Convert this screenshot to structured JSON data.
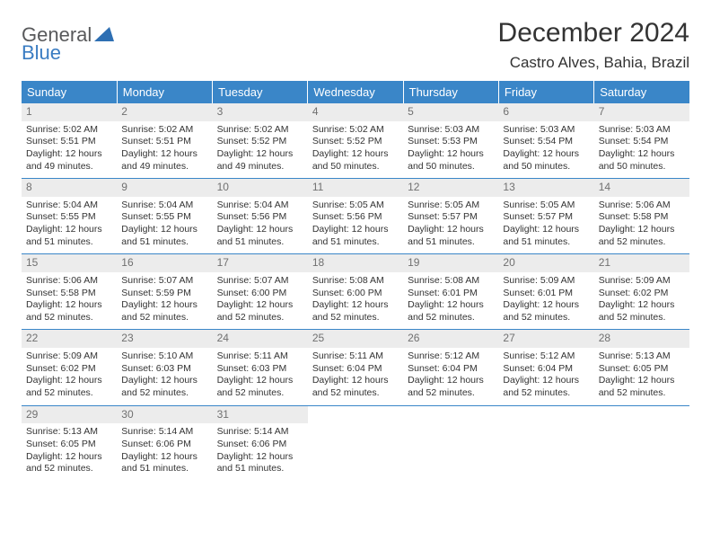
{
  "logo": {
    "line1": "General",
    "line2": "Blue",
    "tri_color": "#2e6fb3"
  },
  "title": "December 2024",
  "location": "Castro Alves, Bahia, Brazil",
  "colors": {
    "header_bg": "#3a86c8",
    "header_text": "#ffffff",
    "row_divider": "#3a86c8",
    "daynum_bg": "#ececec",
    "daynum_text": "#707070",
    "body_text": "#333333",
    "logo_gray": "#58595b",
    "logo_blue": "#3a7cc2"
  },
  "day_headers": [
    "Sunday",
    "Monday",
    "Tuesday",
    "Wednesday",
    "Thursday",
    "Friday",
    "Saturday"
  ],
  "weeks": [
    [
      {
        "n": "1",
        "sunrise": "5:02 AM",
        "sunset": "5:51 PM",
        "day_h": "12",
        "day_m": "49"
      },
      {
        "n": "2",
        "sunrise": "5:02 AM",
        "sunset": "5:51 PM",
        "day_h": "12",
        "day_m": "49"
      },
      {
        "n": "3",
        "sunrise": "5:02 AM",
        "sunset": "5:52 PM",
        "day_h": "12",
        "day_m": "49"
      },
      {
        "n": "4",
        "sunrise": "5:02 AM",
        "sunset": "5:52 PM",
        "day_h": "12",
        "day_m": "50"
      },
      {
        "n": "5",
        "sunrise": "5:03 AM",
        "sunset": "5:53 PM",
        "day_h": "12",
        "day_m": "50"
      },
      {
        "n": "6",
        "sunrise": "5:03 AM",
        "sunset": "5:54 PM",
        "day_h": "12",
        "day_m": "50"
      },
      {
        "n": "7",
        "sunrise": "5:03 AM",
        "sunset": "5:54 PM",
        "day_h": "12",
        "day_m": "50"
      }
    ],
    [
      {
        "n": "8",
        "sunrise": "5:04 AM",
        "sunset": "5:55 PM",
        "day_h": "12",
        "day_m": "51"
      },
      {
        "n": "9",
        "sunrise": "5:04 AM",
        "sunset": "5:55 PM",
        "day_h": "12",
        "day_m": "51"
      },
      {
        "n": "10",
        "sunrise": "5:04 AM",
        "sunset": "5:56 PM",
        "day_h": "12",
        "day_m": "51"
      },
      {
        "n": "11",
        "sunrise": "5:05 AM",
        "sunset": "5:56 PM",
        "day_h": "12",
        "day_m": "51"
      },
      {
        "n": "12",
        "sunrise": "5:05 AM",
        "sunset": "5:57 PM",
        "day_h": "12",
        "day_m": "51"
      },
      {
        "n": "13",
        "sunrise": "5:05 AM",
        "sunset": "5:57 PM",
        "day_h": "12",
        "day_m": "51"
      },
      {
        "n": "14",
        "sunrise": "5:06 AM",
        "sunset": "5:58 PM",
        "day_h": "12",
        "day_m": "52"
      }
    ],
    [
      {
        "n": "15",
        "sunrise": "5:06 AM",
        "sunset": "5:58 PM",
        "day_h": "12",
        "day_m": "52"
      },
      {
        "n": "16",
        "sunrise": "5:07 AM",
        "sunset": "5:59 PM",
        "day_h": "12",
        "day_m": "52"
      },
      {
        "n": "17",
        "sunrise": "5:07 AM",
        "sunset": "6:00 PM",
        "day_h": "12",
        "day_m": "52"
      },
      {
        "n": "18",
        "sunrise": "5:08 AM",
        "sunset": "6:00 PM",
        "day_h": "12",
        "day_m": "52"
      },
      {
        "n": "19",
        "sunrise": "5:08 AM",
        "sunset": "6:01 PM",
        "day_h": "12",
        "day_m": "52"
      },
      {
        "n": "20",
        "sunrise": "5:09 AM",
        "sunset": "6:01 PM",
        "day_h": "12",
        "day_m": "52"
      },
      {
        "n": "21",
        "sunrise": "5:09 AM",
        "sunset": "6:02 PM",
        "day_h": "12",
        "day_m": "52"
      }
    ],
    [
      {
        "n": "22",
        "sunrise": "5:09 AM",
        "sunset": "6:02 PM",
        "day_h": "12",
        "day_m": "52"
      },
      {
        "n": "23",
        "sunrise": "5:10 AM",
        "sunset": "6:03 PM",
        "day_h": "12",
        "day_m": "52"
      },
      {
        "n": "24",
        "sunrise": "5:11 AM",
        "sunset": "6:03 PM",
        "day_h": "12",
        "day_m": "52"
      },
      {
        "n": "25",
        "sunrise": "5:11 AM",
        "sunset": "6:04 PM",
        "day_h": "12",
        "day_m": "52"
      },
      {
        "n": "26",
        "sunrise": "5:12 AM",
        "sunset": "6:04 PM",
        "day_h": "12",
        "day_m": "52"
      },
      {
        "n": "27",
        "sunrise": "5:12 AM",
        "sunset": "6:04 PM",
        "day_h": "12",
        "day_m": "52"
      },
      {
        "n": "28",
        "sunrise": "5:13 AM",
        "sunset": "6:05 PM",
        "day_h": "12",
        "day_m": "52"
      }
    ],
    [
      {
        "n": "29",
        "sunrise": "5:13 AM",
        "sunset": "6:05 PM",
        "day_h": "12",
        "day_m": "52"
      },
      {
        "n": "30",
        "sunrise": "5:14 AM",
        "sunset": "6:06 PM",
        "day_h": "12",
        "day_m": "51"
      },
      {
        "n": "31",
        "sunrise": "5:14 AM",
        "sunset": "6:06 PM",
        "day_h": "12",
        "day_m": "51"
      },
      null,
      null,
      null,
      null
    ]
  ],
  "labels": {
    "sunrise": "Sunrise: ",
    "sunset": "Sunset: ",
    "daylight_prefix": "Daylight: ",
    "hours_and": " hours and ",
    "minutes": " minutes."
  }
}
